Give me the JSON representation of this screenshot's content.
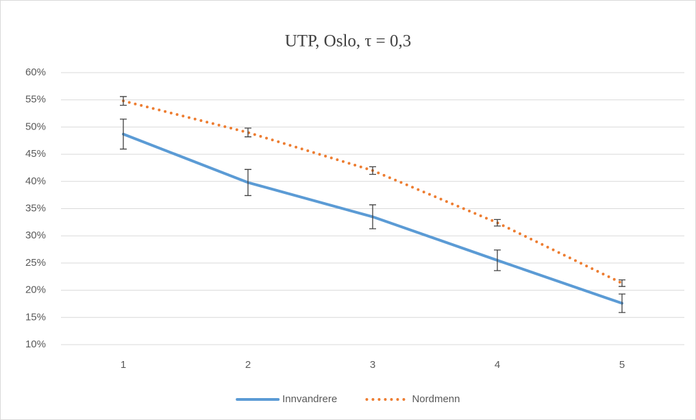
{
  "chart_data": {
    "type": "line",
    "title": "UTP, Oslo, τ = 0,3",
    "categories": [
      "1",
      "2",
      "3",
      "4",
      "5"
    ],
    "series": [
      {
        "name": "Innvandrere",
        "color": "#5b9bd5",
        "style": "solid",
        "values": [
          48.7,
          39.8,
          33.5,
          25.5,
          17.6
        ],
        "errors": [
          2.75,
          2.4,
          2.2,
          1.9,
          1.7
        ]
      },
      {
        "name": "Nordmenn",
        "color": "#ed7d31",
        "style": "dotted",
        "values": [
          54.8,
          49.0,
          42.0,
          32.4,
          21.3
        ],
        "errors": [
          0.8,
          0.8,
          0.7,
          0.6,
          0.6
        ]
      }
    ],
    "ylim": [
      10,
      60
    ],
    "yticks": [
      {
        "value": 10,
        "label": "10%"
      },
      {
        "value": 15,
        "label": "15%"
      },
      {
        "value": 20,
        "label": "20%"
      },
      {
        "value": 25,
        "label": "25%"
      },
      {
        "value": 30,
        "label": "30%"
      },
      {
        "value": 35,
        "label": "35%"
      },
      {
        "value": 40,
        "label": "40%"
      },
      {
        "value": 45,
        "label": "45%"
      },
      {
        "value": 50,
        "label": "50%"
      },
      {
        "value": 55,
        "label": "55%"
      },
      {
        "value": 60,
        "label": "60%"
      }
    ],
    "grid": true,
    "legend": "bottom"
  }
}
